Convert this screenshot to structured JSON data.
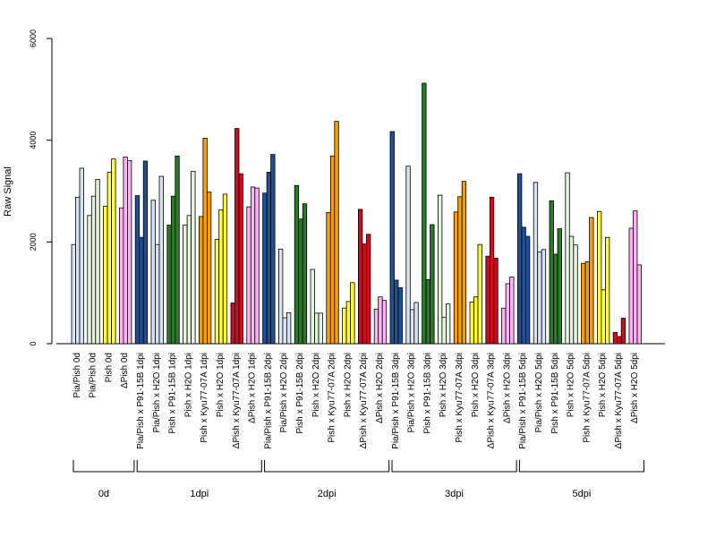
{
  "chart_data": {
    "type": "bar",
    "ylabel": "Raw Signal",
    "ylim": [
      0,
      6000
    ],
    "yticks": [
      0,
      2000,
      4000,
      6000
    ],
    "groups": [
      {
        "label": "Pia/Pish 0d",
        "color": "#d6e3f2",
        "values": [
          1950,
          2880,
          3450
        ]
      },
      {
        "label": "Pia/Pish 0d",
        "color": "#e3f3dd",
        "values": [
          2520,
          2900,
          3230
        ]
      },
      {
        "label": "Pish 0d",
        "color": "#ffff33",
        "values": [
          2700,
          3370,
          3630
        ]
      },
      {
        "label": "ΔPish 0d",
        "color": "#ffb3f5",
        "values": [
          2670,
          3670,
          3600
        ]
      },
      {
        "label": "Pia/Pish x P91-15B 1dpi",
        "color": "#1f4f95",
        "values": [
          2910,
          2090,
          3590
        ]
      },
      {
        "label": "Pia/Pish x H2O 1dpi",
        "color": "#d6e3f2",
        "values": [
          2820,
          1950,
          3290
        ]
      },
      {
        "label": "Pish x P91-15B 1dpi",
        "color": "#2a7a2a",
        "values": [
          2330,
          2900,
          3690
        ]
      },
      {
        "label": "Pish x H2O 1dpi",
        "color": "#e3f3dd",
        "values": [
          2330,
          2520,
          3390
        ]
      },
      {
        "label": "Pish x Kyu77-07A 1dpi",
        "color": "#f5a000",
        "values": [
          2500,
          4040,
          2980
        ]
      },
      {
        "label": "Pish x H2O 1dpi",
        "color": "#ffff33",
        "values": [
          2050,
          2630,
          2940
        ]
      },
      {
        "label": "ΔPish x Kyu77-07A 1dpi",
        "color": "#d10a1e",
        "values": [
          800,
          4230,
          3340
        ]
      },
      {
        "label": "ΔPish x H2O 1dpi",
        "color": "#ffb3f5",
        "values": [
          2690,
          3080,
          3060
        ]
      },
      {
        "label": "Pia/Pish x P91-15B 2dpi",
        "color": "#1f4f95",
        "values": [
          2960,
          3370,
          3720
        ]
      },
      {
        "label": "Pia/Pish x H2O 2dpi",
        "color": "#d6e3f2",
        "values": [
          1860,
          510,
          610
        ]
      },
      {
        "label": "Pish x P91-15B 2dpi",
        "color": "#2a7a2a",
        "values": [
          3110,
          2450,
          2750
        ]
      },
      {
        "label": "Pish x H2O 2dpi",
        "color": "#e3f3dd",
        "values": [
          1460,
          600,
          600
        ]
      },
      {
        "label": "Pish x Kyu77-07A 2dpi",
        "color": "#f5a000",
        "values": [
          2580,
          3690,
          4370
        ]
      },
      {
        "label": "Pish x H2O 2dpi",
        "color": "#ffff33",
        "values": [
          700,
          830,
          1200
        ]
      },
      {
        "label": "ΔPish x Kyu77-07A 2dpi",
        "color": "#d10a1e",
        "values": [
          2640,
          1960,
          2150
        ]
      },
      {
        "label": "ΔPish x H2O 2dpi",
        "color": "#ffb3f5",
        "values": [
          680,
          920,
          850
        ]
      },
      {
        "label": "Pia/Pish x P91-15B 3dpi",
        "color": "#1f4f95",
        "values": [
          4170,
          1250,
          1100
        ]
      },
      {
        "label": "Pia/Pish x H2O 3dpi",
        "color": "#d6e3f2",
        "values": [
          3490,
          670,
          810
        ]
      },
      {
        "label": "Pish x P91-15B 3dpi",
        "color": "#2a7a2a",
        "values": [
          5120,
          1260,
          2340
        ]
      },
      {
        "label": "Pish x H2O 3dpi",
        "color": "#e3f3dd",
        "values": [
          2920,
          520,
          780
        ]
      },
      {
        "label": "Pish x Kyu77-07A 3dpi",
        "color": "#f5a000",
        "values": [
          2590,
          2890,
          3190
        ]
      },
      {
        "label": "Pish x H2O 3dpi",
        "color": "#ffff33",
        "values": [
          820,
          920,
          1950
        ]
      },
      {
        "label": "ΔPish x Kyu77-07A 3dpi",
        "color": "#d10a1e",
        "values": [
          1720,
          2880,
          1680
        ]
      },
      {
        "label": "ΔPish x H2O 3dpi",
        "color": "#ffb3f5",
        "values": [
          700,
          1180,
          1310
        ]
      },
      {
        "label": "Pia/Pish x P91-15B 5dpi",
        "color": "#1f4f95",
        "values": [
          3340,
          2290,
          2110
        ]
      },
      {
        "label": "Pia/Pish x H2O 5dpi",
        "color": "#d6e3f2",
        "values": [
          3170,
          1800,
          1850
        ]
      },
      {
        "label": "Pish x P91-15B 5dpi",
        "color": "#2a7a2a",
        "values": [
          2810,
          1760,
          2260
        ]
      },
      {
        "label": "Pish x H2O 5dpi",
        "color": "#e3f3dd",
        "values": [
          3360,
          2110,
          1940
        ]
      },
      {
        "label": "Pish x Kyu77-07A 5dpi",
        "color": "#f5a000",
        "values": [
          1580,
          1610,
          2480
        ]
      },
      {
        "label": "Pish x H2O 5dpi",
        "color": "#ffff33",
        "values": [
          2600,
          1060,
          2090
        ]
      },
      {
        "label": "ΔPish x Kyu77-07A 5dpi",
        "color": "#d10a1e",
        "values": [
          220,
          140,
          500
        ]
      },
      {
        "label": "ΔPish x H2O 5dpi",
        "color": "#ffb3f5",
        "values": [
          2270,
          2610,
          1550
        ]
      }
    ],
    "timepoints": [
      {
        "label": "0d",
        "groups": 4
      },
      {
        "label": "1dpi",
        "groups": 8
      },
      {
        "label": "2dpi",
        "groups": 8
      },
      {
        "label": "3dpi",
        "groups": 8
      },
      {
        "label": "5dpi",
        "groups": 8
      }
    ]
  }
}
